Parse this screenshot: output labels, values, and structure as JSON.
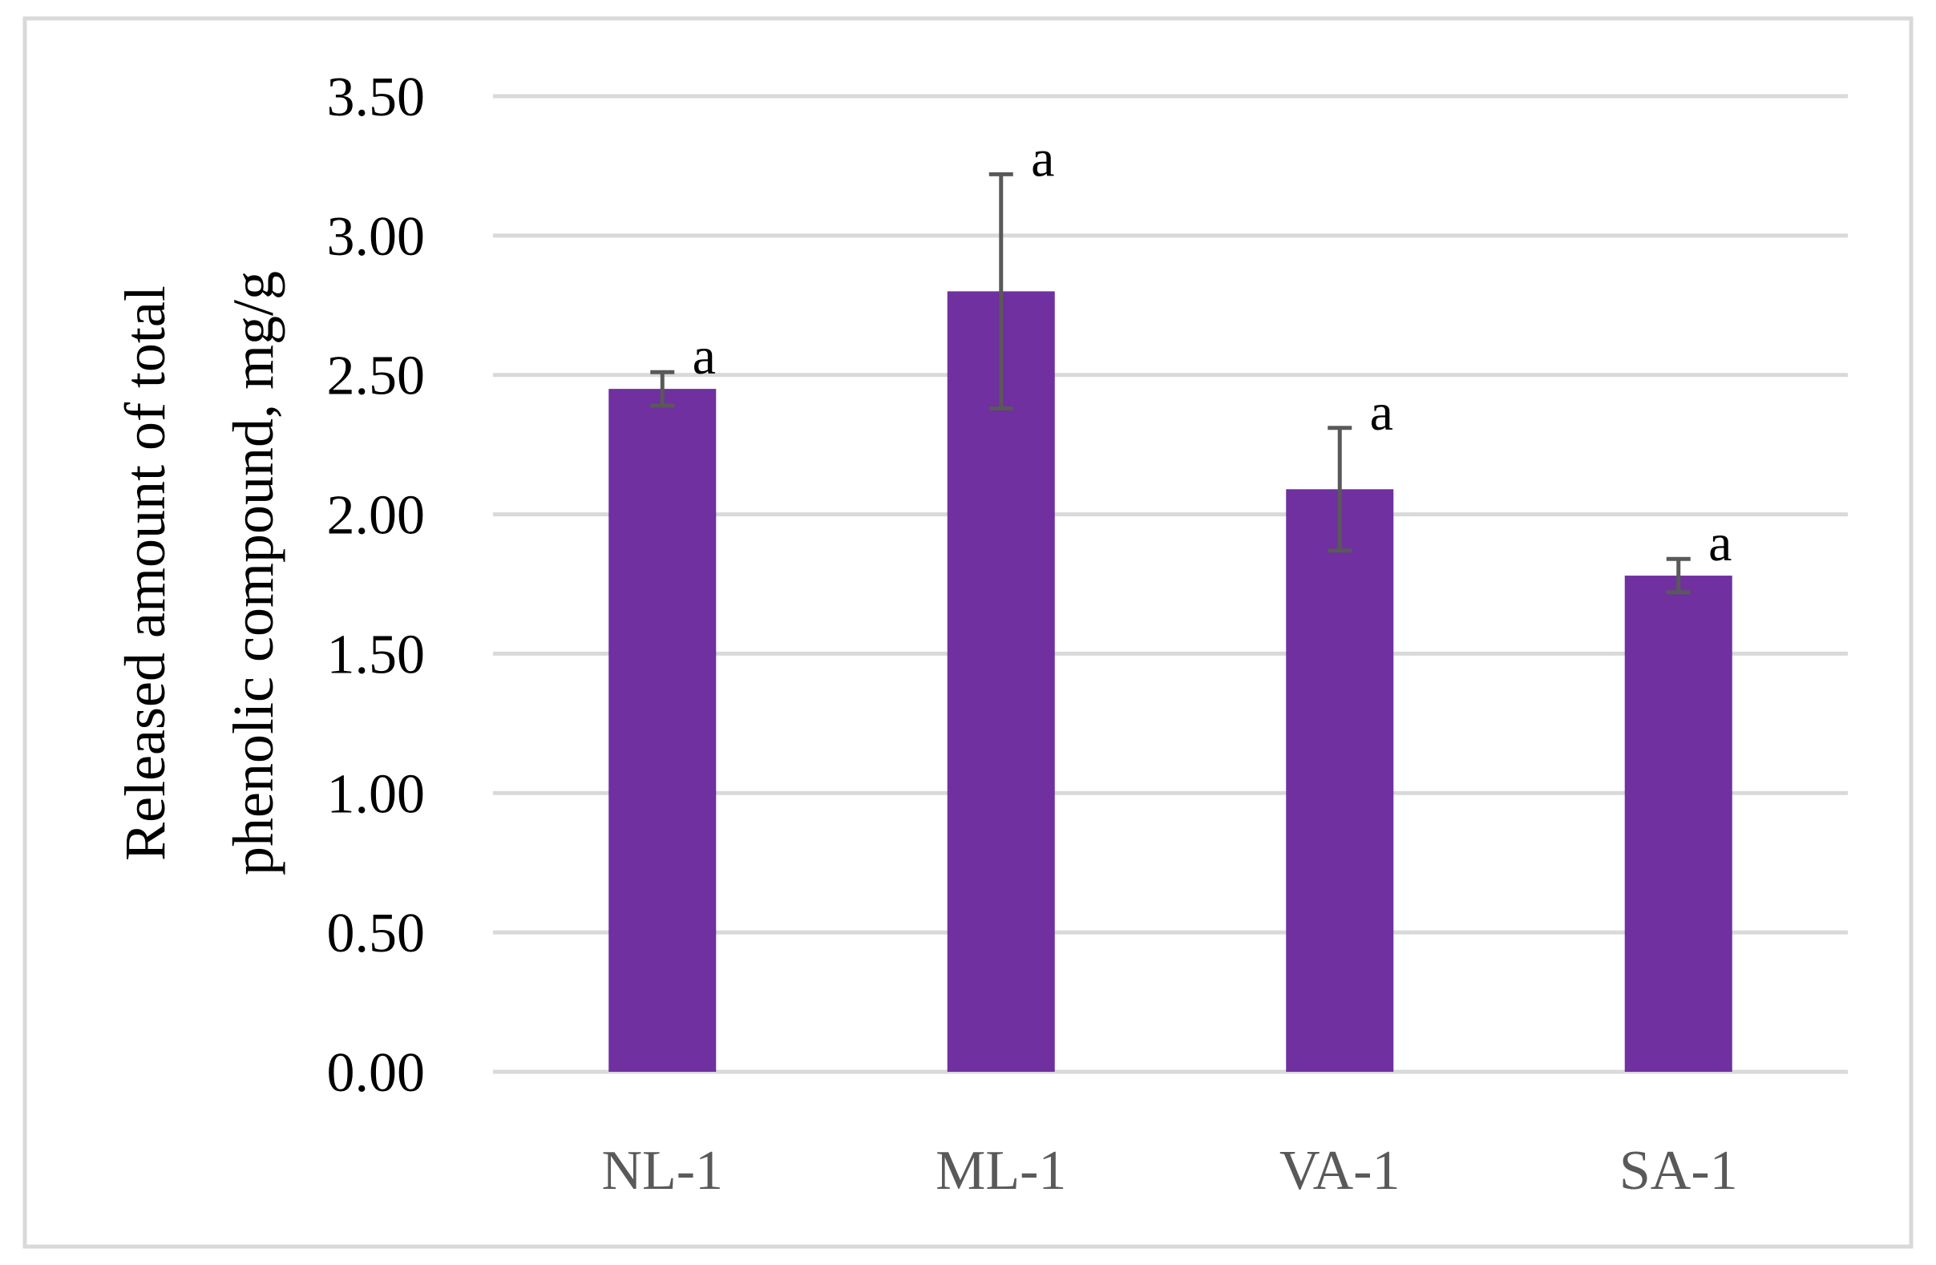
{
  "chart_data": {
    "type": "bar",
    "title": "",
    "xlabel": "",
    "ylabel_lines": [
      "Released amount of total",
      "phenolic compound, mg/g"
    ],
    "categories": [
      "NL-1",
      "ML-1",
      "VA-1",
      "SA-1"
    ],
    "values": [
      2.45,
      2.8,
      2.09,
      1.78
    ],
    "error": [
      0.06,
      0.42,
      0.22,
      0.06
    ],
    "significance": [
      "a",
      "a",
      "a",
      "a"
    ],
    "ylim": [
      0,
      3.5
    ],
    "yticks": [
      "0.00",
      "0.50",
      "1.00",
      "1.50",
      "2.00",
      "2.50",
      "3.00",
      "3.50"
    ],
    "grid": true,
    "legend": "none",
    "colors": {
      "bar": "#7030a0",
      "error_bar": "#595959",
      "grid": "#d9d9d9",
      "frame": "#d9d9d9"
    }
  }
}
